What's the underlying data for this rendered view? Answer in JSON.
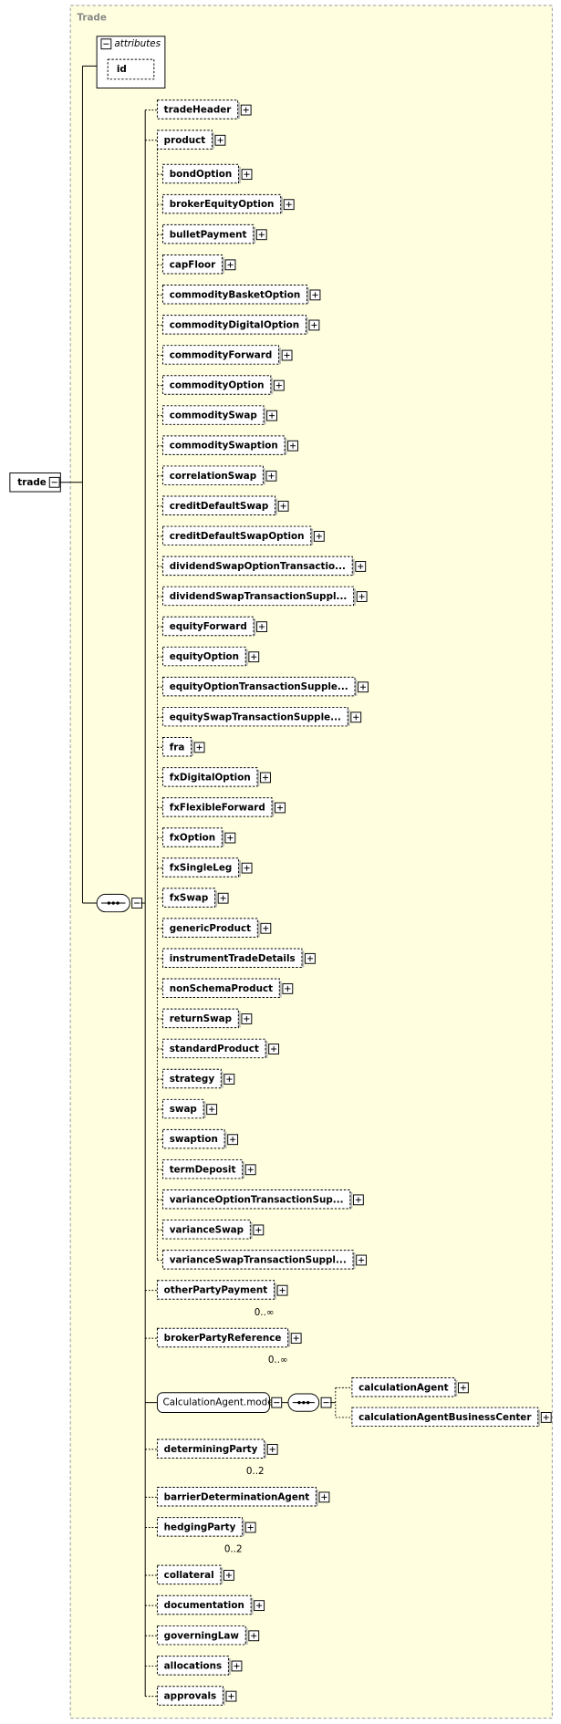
{
  "header": {
    "title": "Trade"
  },
  "attributes": {
    "label": "attributes",
    "items": [
      "id"
    ]
  },
  "root": {
    "label": "trade"
  },
  "sequence": [
    {
      "label": "tradeHeader"
    },
    {
      "label": "product",
      "choice": [
        "bondOption",
        "brokerEquityOption",
        "bulletPayment",
        "capFloor",
        "commodityBasketOption",
        "commodityDigitalOption",
        "commodityForward",
        "commodityOption",
        "commoditySwap",
        "commoditySwaption",
        "correlationSwap",
        "creditDefaultSwap",
        "creditDefaultSwapOption",
        "dividendSwapOptionTransactio...",
        "dividendSwapTransactionSuppl...",
        "equityForward",
        "equityOption",
        "equityOptionTransactionSupple...",
        "equitySwapTransactionSupple...",
        "fra",
        "fxDigitalOption",
        "fxFlexibleForward",
        "fxOption",
        "fxSingleLeg",
        "fxSwap",
        "genericProduct",
        "instrumentTradeDetails",
        "nonSchemaProduct",
        "returnSwap",
        "standardProduct",
        "strategy",
        "swap",
        "swaption",
        "termDeposit",
        "varianceOptionTransactionSup...",
        "varianceSwap",
        "varianceSwapTransactionSuppl..."
      ]
    },
    {
      "label": "otherPartyPayment",
      "cardinality": "0..∞"
    },
    {
      "label": "brokerPartyReference",
      "cardinality": "0..∞"
    },
    {
      "label": "CalculationAgent.model",
      "children": [
        "calculationAgent",
        "calculationAgentBusinessCenter"
      ]
    },
    {
      "label": "determiningParty",
      "cardinality": "0..2"
    },
    {
      "label": "barrierDeterminationAgent"
    },
    {
      "label": "hedgingParty",
      "cardinality": "0..2"
    },
    {
      "label": "collateral"
    },
    {
      "label": "documentation"
    },
    {
      "label": "governingLaw"
    },
    {
      "label": "allocations"
    },
    {
      "label": "approvals"
    }
  ]
}
